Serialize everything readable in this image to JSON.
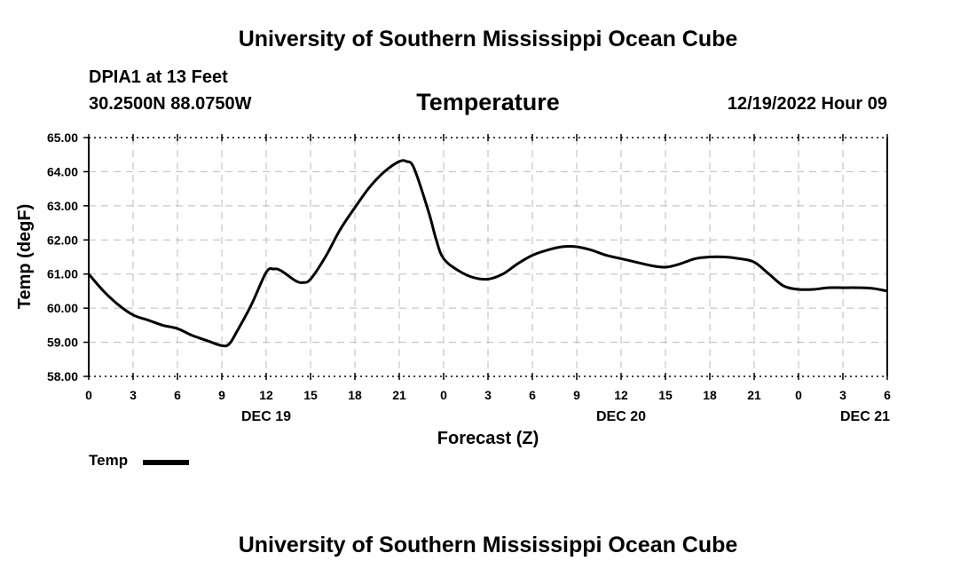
{
  "header": {
    "title": "University of Southern Mississippi Ocean Cube",
    "station": "DPIA1 at 13 Feet",
    "coords": "30.2500N  88.0750W",
    "datetime": "12/19/2022 Hour 09",
    "footer_title": "University of Southern Mississippi Ocean Cube"
  },
  "chart_data": {
    "type": "line",
    "title": "Temperature",
    "xlabel": "Forecast (Z)",
    "ylabel": "Temp (degF)",
    "ylim": [
      58,
      65
    ],
    "y_ticks": [
      "58.00",
      "59.00",
      "60.00",
      "61.00",
      "62.00",
      "63.00",
      "64.00",
      "65.00"
    ],
    "xlim": [
      0,
      54
    ],
    "x_ticks": [
      {
        "pos": 0,
        "label": "0"
      },
      {
        "pos": 3,
        "label": "3"
      },
      {
        "pos": 6,
        "label": "6"
      },
      {
        "pos": 9,
        "label": "9"
      },
      {
        "pos": 12,
        "label": "12"
      },
      {
        "pos": 15,
        "label": "15"
      },
      {
        "pos": 18,
        "label": "18"
      },
      {
        "pos": 21,
        "label": "21"
      },
      {
        "pos": 24,
        "label": "0"
      },
      {
        "pos": 27,
        "label": "3"
      },
      {
        "pos": 30,
        "label": "6"
      },
      {
        "pos": 33,
        "label": "9"
      },
      {
        "pos": 36,
        "label": "12"
      },
      {
        "pos": 39,
        "label": "15"
      },
      {
        "pos": 42,
        "label": "18"
      },
      {
        "pos": 45,
        "label": "21"
      },
      {
        "pos": 48,
        "label": "0"
      },
      {
        "pos": 51,
        "label": "3"
      },
      {
        "pos": 54,
        "label": "6"
      }
    ],
    "day_labels": [
      {
        "pos": 12,
        "label": "DEC 19"
      },
      {
        "pos": 36,
        "label": "DEC 20"
      },
      {
        "pos": 52.5,
        "label": "DEC 21"
      }
    ],
    "grid": true,
    "legend": {
      "label": "Temp",
      "placement": "bottom-left"
    },
    "series": [
      {
        "name": "Temp",
        "color": "#000000",
        "x": [
          0,
          1,
          2,
          3,
          4,
          5,
          6,
          7,
          8,
          9,
          9.5,
          10,
          11,
          12,
          12.5,
          13,
          14,
          14.5,
          15,
          16,
          17,
          18,
          19,
          20,
          21,
          21.5,
          22,
          23,
          23.5,
          24,
          25,
          26,
          27,
          28,
          29,
          30,
          31,
          32,
          33,
          34,
          35,
          36,
          37,
          38,
          39,
          40,
          41,
          42,
          43,
          44,
          45,
          46,
          47,
          48,
          49,
          50,
          51,
          52,
          53,
          54
        ],
        "values": [
          61.0,
          60.5,
          60.1,
          59.8,
          59.65,
          59.5,
          59.4,
          59.2,
          59.05,
          58.9,
          58.95,
          59.3,
          60.1,
          61.05,
          61.15,
          61.1,
          60.8,
          60.75,
          60.85,
          61.5,
          62.3,
          62.95,
          63.55,
          64.0,
          64.3,
          64.3,
          64.1,
          62.8,
          62.0,
          61.45,
          61.1,
          60.9,
          60.85,
          61.0,
          61.3,
          61.55,
          61.7,
          61.8,
          61.8,
          61.7,
          61.55,
          61.45,
          61.35,
          61.25,
          61.2,
          61.3,
          61.45,
          61.5,
          61.5,
          61.45,
          61.35,
          61.0,
          60.65,
          60.55,
          60.55,
          60.6,
          60.6,
          60.6,
          60.58,
          60.5
        ]
      }
    ]
  }
}
